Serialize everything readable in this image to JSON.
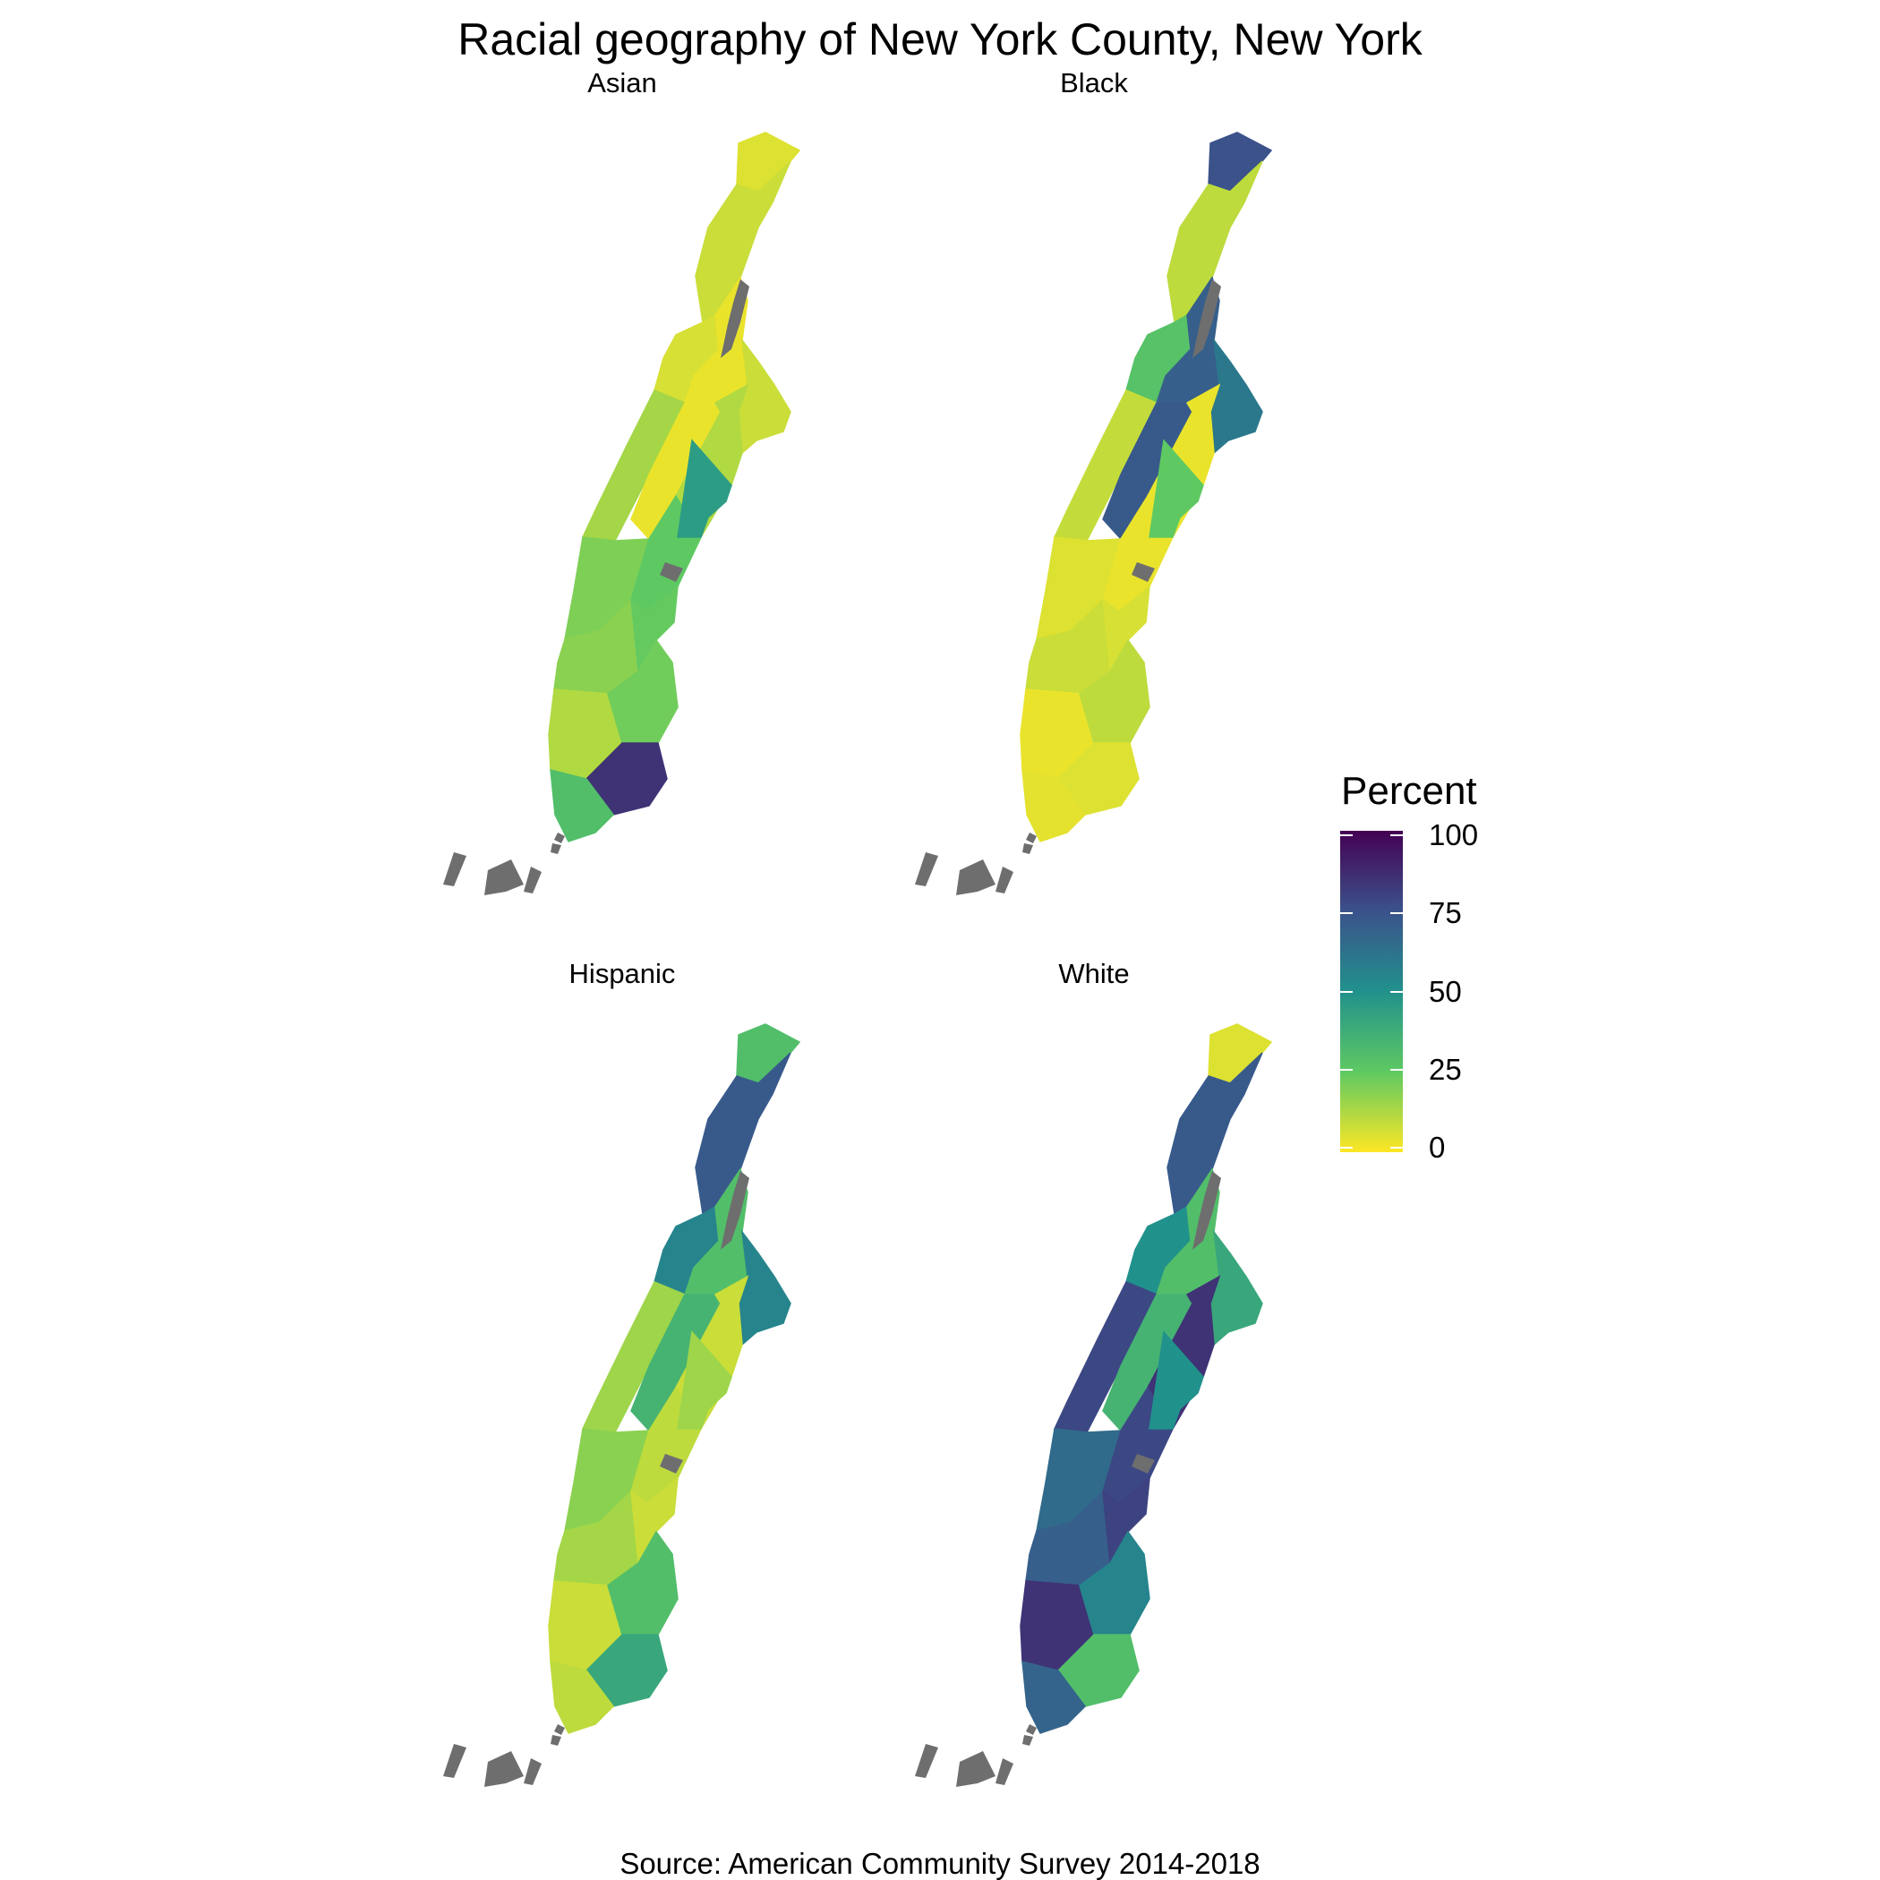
{
  "title": "Racial geography of New York County, New York",
  "caption": "Source: American Community Survey 2014-2018",
  "facets": [
    {
      "label": "Asian",
      "regions": {
        "inwood": 5,
        "washington_heights": 8,
        "hamilton_heights": 6,
        "harlem": 3,
        "east_harlem": 8,
        "upper_west_side": 14,
        "central_park": 3,
        "upper_east_side": 12,
        "midtown_west": 20,
        "midtown_east": 25,
        "roosevelt": 45,
        "chelsea": 18,
        "gramercy": 24,
        "west_village": 12,
        "east_village": 22,
        "chinatown": 85,
        "financial_district": 30
      }
    },
    {
      "label": "Black",
      "regions": {
        "inwood": 75,
        "washington_heights": 10,
        "hamilton_heights": 28,
        "harlem": 70,
        "east_harlem": 60,
        "upper_west_side": 9,
        "central_park": 72,
        "upper_east_side": 3,
        "midtown_west": 5,
        "midtown_east": 3,
        "roosevelt": 25,
        "chelsea": 8,
        "gramercy": 6,
        "west_village": 3,
        "east_village": 10,
        "chinatown": 5,
        "financial_district": 4
      }
    },
    {
      "label": "Hispanic",
      "regions": {
        "inwood": 30,
        "washington_heights": 72,
        "hamilton_heights": 55,
        "harlem": 30,
        "east_harlem": 55,
        "upper_west_side": 15,
        "central_park": 35,
        "upper_east_side": 8,
        "midtown_west": 18,
        "midtown_east": 10,
        "roosevelt": 15,
        "chelsea": 14,
        "gramercy": 8,
        "west_village": 8,
        "east_village": 30,
        "chinatown": 40,
        "financial_district": 10
      }
    },
    {
      "label": "White",
      "regions": {
        "inwood": 5,
        "washington_heights": 72,
        "hamilton_heights": 50,
        "harlem": 30,
        "east_harlem": 40,
        "upper_west_side": 78,
        "central_park": 35,
        "upper_east_side": 85,
        "midtown_west": 65,
        "midtown_east": 78,
        "roosevelt": 50,
        "chelsea": 70,
        "gramercy": 80,
        "west_village": 85,
        "east_village": 55,
        "chinatown": 30,
        "financial_district": 68
      }
    }
  ],
  "legend": {
    "title": "Percent",
    "ticks": [
      "100",
      "75",
      "50",
      "25",
      "0"
    ],
    "tick_values": [
      100,
      75,
      50,
      25,
      0
    ],
    "range": [
      0,
      100
    ],
    "palette": [
      "#fde725",
      "#5ec962",
      "#21918c",
      "#3b528b",
      "#440154"
    ],
    "missing_color": "#6e6e6e"
  }
}
